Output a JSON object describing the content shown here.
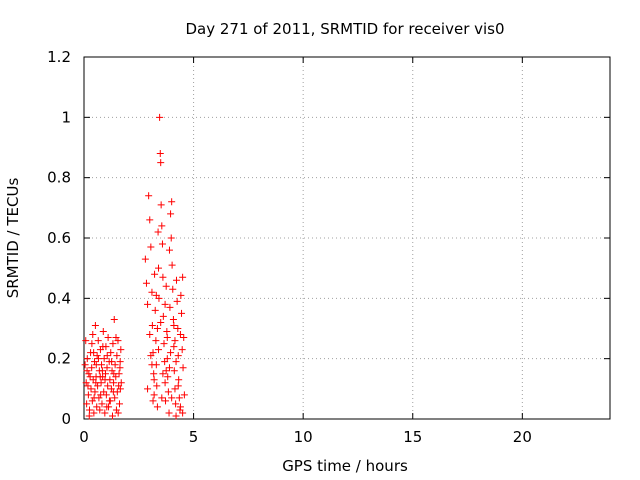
{
  "chart_data": {
    "type": "scatter",
    "title": "Day 271 of 2011, SRMTID for receiver vis0",
    "xlabel": "GPS time / hours",
    "ylabel": "SRMTID / TECUs",
    "xlim": [
      0,
      24
    ],
    "ylim": [
      0,
      1.2
    ],
    "xticks": [
      0,
      5,
      10,
      15,
      20
    ],
    "yticks": [
      0,
      0.2,
      0.4,
      0.6,
      0.8,
      1,
      1.2
    ],
    "xtick_labels": [
      "0",
      "5",
      "10",
      "15",
      "20"
    ],
    "ytick_labels": [
      "0",
      "0.2",
      "0.4",
      "0.6",
      "0.8",
      "1",
      "1.2"
    ],
    "grid": true,
    "marker": "+",
    "series": [
      {
        "name": "vis0",
        "color": "#ff0000",
        "points": [
          [
            0.05,
            0.18
          ],
          [
            0.1,
            0.12
          ],
          [
            0.12,
            0.05
          ],
          [
            0.15,
            0.2
          ],
          [
            0.2,
            0.08
          ],
          [
            0.22,
            0.15
          ],
          [
            0.25,
            0.03
          ],
          [
            0.3,
            0.22
          ],
          [
            0.32,
            0.1
          ],
          [
            0.35,
            0.17
          ],
          [
            0.38,
            0.06
          ],
          [
            0.4,
            0.28
          ],
          [
            0.42,
            0.13
          ],
          [
            0.45,
            0.02
          ],
          [
            0.48,
            0.19
          ],
          [
            0.5,
            0.09
          ],
          [
            0.52,
            0.31
          ],
          [
            0.55,
            0.14
          ],
          [
            0.58,
            0.04
          ],
          [
            0.6,
            0.21
          ],
          [
            0.62,
            0.11
          ],
          [
            0.65,
            0.26
          ],
          [
            0.68,
            0.07
          ],
          [
            0.7,
            0.16
          ],
          [
            0.72,
            0.03
          ],
          [
            0.75,
            0.23
          ],
          [
            0.78,
            0.12
          ],
          [
            0.8,
            0.18
          ],
          [
            0.82,
            0.05
          ],
          [
            0.85,
            0.14
          ],
          [
            0.88,
            0.29
          ],
          [
            0.9,
            0.09
          ],
          [
            0.92,
            0.2
          ],
          [
            0.95,
            0.02
          ],
          [
            0.98,
            0.15
          ],
          [
            1.0,
            0.24
          ],
          [
            1.02,
            0.08
          ],
          [
            1.05,
            0.17
          ],
          [
            1.08,
            0.11
          ],
          [
            1.1,
            0.27
          ],
          [
            1.12,
            0.04
          ],
          [
            1.15,
            0.19
          ],
          [
            1.18,
            0.13
          ],
          [
            1.2,
            0.06
          ],
          [
            1.22,
            0.22
          ],
          [
            1.25,
            0.1
          ],
          [
            1.28,
            0.16
          ],
          [
            1.3,
            0.01
          ],
          [
            1.32,
            0.25
          ],
          [
            1.35,
            0.12
          ],
          [
            1.38,
            0.33
          ],
          [
            1.4,
            0.07
          ],
          [
            1.42,
            0.18
          ],
          [
            1.45,
            0.14
          ],
          [
            1.48,
            0.03
          ],
          [
            1.5,
            0.21
          ],
          [
            1.52,
            0.09
          ],
          [
            1.55,
            0.26
          ],
          [
            1.58,
            0.11
          ],
          [
            1.6,
            0.15
          ],
          [
            1.62,
            0.05
          ],
          [
            1.65,
            0.19
          ],
          [
            1.68,
            0.23
          ],
          [
            1.7,
            0.12
          ],
          [
            0.08,
            0.26
          ],
          [
            0.18,
            0.11
          ],
          [
            0.28,
            0.14
          ],
          [
            0.36,
            0.25
          ],
          [
            0.46,
            0.07
          ],
          [
            0.56,
            0.18
          ],
          [
            0.66,
            0.2
          ],
          [
            0.76,
            0.08
          ],
          [
            0.86,
            0.24
          ],
          [
            0.96,
            0.13
          ],
          [
            1.06,
            0.21
          ],
          [
            1.16,
            0.06
          ],
          [
            1.26,
            0.19
          ],
          [
            1.36,
            0.15
          ],
          [
            1.46,
            0.27
          ],
          [
            1.56,
            0.02
          ],
          [
            1.66,
            0.1
          ],
          [
            0.14,
            0.16
          ],
          [
            0.44,
            0.22
          ],
          [
            0.74,
            0.14
          ],
          [
            1.04,
            0.04
          ],
          [
            1.34,
            0.09
          ],
          [
            1.64,
            0.17
          ],
          [
            0.24,
            0.01
          ],
          [
            0.54,
            0.12
          ],
          [
            0.84,
            0.16
          ],
          [
            2.8,
            0.53
          ],
          [
            2.85,
            0.45
          ],
          [
            2.9,
            0.38
          ],
          [
            2.95,
            0.74
          ],
          [
            3.0,
            0.66
          ],
          [
            3.05,
            0.57
          ],
          [
            3.1,
            0.42
          ],
          [
            3.12,
            0.31
          ],
          [
            3.15,
            0.22
          ],
          [
            3.18,
            0.15
          ],
          [
            3.2,
            0.08
          ],
          [
            3.22,
            0.48
          ],
          [
            3.25,
            0.36
          ],
          [
            3.28,
            0.26
          ],
          [
            3.3,
            0.18
          ],
          [
            3.32,
            0.11
          ],
          [
            3.35,
            0.04
          ],
          [
            3.38,
            0.62
          ],
          [
            3.4,
            0.5
          ],
          [
            3.42,
            0.4
          ],
          [
            3.45,
            1.0
          ],
          [
            3.48,
            0.88
          ],
          [
            3.5,
            0.85
          ],
          [
            3.52,
            0.71
          ],
          [
            3.55,
            0.64
          ],
          [
            3.58,
            0.58
          ],
          [
            3.6,
            0.47
          ],
          [
            3.62,
            0.34
          ],
          [
            3.65,
            0.25
          ],
          [
            3.68,
            0.19
          ],
          [
            3.7,
            0.12
          ],
          [
            3.72,
            0.06
          ],
          [
            3.75,
            0.44
          ],
          [
            3.78,
            0.29
          ],
          [
            3.8,
            0.2
          ],
          [
            3.82,
            0.14
          ],
          [
            3.85,
            0.09
          ],
          [
            3.88,
            0.02
          ],
          [
            3.9,
            0.56
          ],
          [
            3.92,
            0.37
          ],
          [
            3.95,
            0.68
          ],
          [
            3.98,
            0.6
          ],
          [
            4.0,
            0.72
          ],
          [
            4.02,
            0.51
          ],
          [
            4.05,
            0.43
          ],
          [
            4.08,
            0.33
          ],
          [
            4.1,
            0.24
          ],
          [
            4.12,
            0.16
          ],
          [
            4.15,
            0.1
          ],
          [
            4.18,
            0.05
          ],
          [
            4.2,
            0.01
          ],
          [
            4.22,
            0.46
          ],
          [
            4.25,
            0.39
          ],
          [
            4.28,
            0.3
          ],
          [
            4.3,
            0.21
          ],
          [
            4.32,
            0.13
          ],
          [
            4.35,
            0.07
          ],
          [
            4.38,
            0.03
          ],
          [
            4.4,
            0.28
          ],
          [
            4.42,
            0.41
          ],
          [
            4.45,
            0.35
          ],
          [
            4.48,
            0.23
          ],
          [
            4.5,
            0.47
          ],
          [
            4.52,
            0.17
          ],
          [
            4.55,
            0.27
          ],
          [
            4.58,
            0.08
          ],
          [
            3.0,
            0.28
          ],
          [
            3.1,
            0.18
          ],
          [
            3.2,
            0.13
          ],
          [
            3.3,
            0.41
          ],
          [
            3.4,
            0.23
          ],
          [
            3.5,
            0.32
          ],
          [
            3.6,
            0.15
          ],
          [
            3.7,
            0.38
          ],
          [
            3.8,
            0.27
          ],
          [
            3.9,
            0.17
          ],
          [
            4.0,
            0.07
          ],
          [
            4.1,
            0.31
          ],
          [
            4.2,
            0.19
          ],
          [
            4.3,
            0.11
          ],
          [
            4.4,
            0.04
          ],
          [
            4.5,
            0.02
          ],
          [
            2.9,
            0.1
          ],
          [
            3.05,
            0.21
          ],
          [
            3.15,
            0.06
          ],
          [
            3.35,
            0.3
          ],
          [
            3.55,
            0.07
          ],
          [
            3.75,
            0.16
          ],
          [
            3.95,
            0.22
          ],
          [
            4.15,
            0.26
          ]
        ]
      }
    ]
  }
}
